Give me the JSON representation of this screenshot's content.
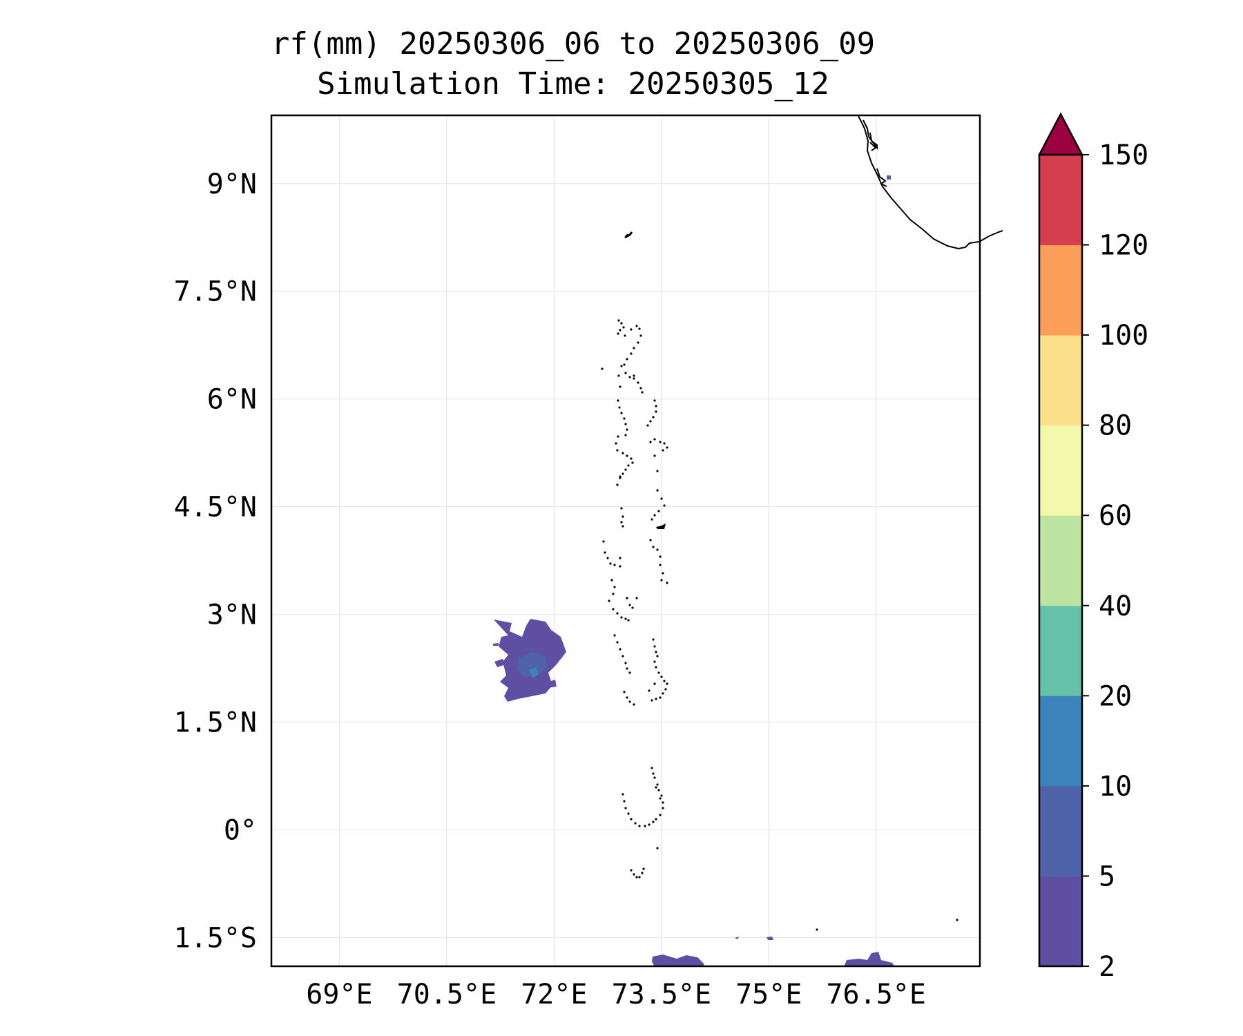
{
  "map": {
    "title_line1": "rf(mm) 20250306_06 to 20250306_09",
    "title_line2": "Simulation Time: 20250305_12",
    "lon_ticks": [
      {
        "value": 69,
        "label": "69°E"
      },
      {
        "value": 70.5,
        "label": "70.5°E"
      },
      {
        "value": 72,
        "label": "72°E"
      },
      {
        "value": 73.5,
        "label": "73.5°E"
      },
      {
        "value": 75,
        "label": "75°E"
      },
      {
        "value": 76.5,
        "label": "76.5°E"
      }
    ],
    "lat_ticks": [
      {
        "value": 9,
        "label": "9°N"
      },
      {
        "value": 7.5,
        "label": "7.5°N"
      },
      {
        "value": 6,
        "label": "6°N"
      },
      {
        "value": 4.5,
        "label": "4.5°N"
      },
      {
        "value": 3,
        "label": "3°N"
      },
      {
        "value": 1.5,
        "label": "1.5°N"
      },
      {
        "value": 0,
        "label": "0°"
      },
      {
        "value": -1.5,
        "label": "1.5°S"
      }
    ],
    "lon_range": [
      68.05,
      77.95
    ],
    "lat_range": [
      -1.9,
      9.95
    ],
    "grid": true,
    "colorbar": {
      "levels": [
        "2",
        "5",
        "10",
        "20",
        "40",
        "60",
        "80",
        "100",
        "120",
        "150"
      ],
      "colors": [
        "#5e4fa2",
        "#4f63ab",
        "#3b83bb",
        "#65c1a8",
        "#bde3a0",
        "#f2f9ad",
        "#fde08b",
        "#fb9e5a",
        "#d53e4f",
        "#9e0142"
      ],
      "extend": "max"
    }
  }
}
